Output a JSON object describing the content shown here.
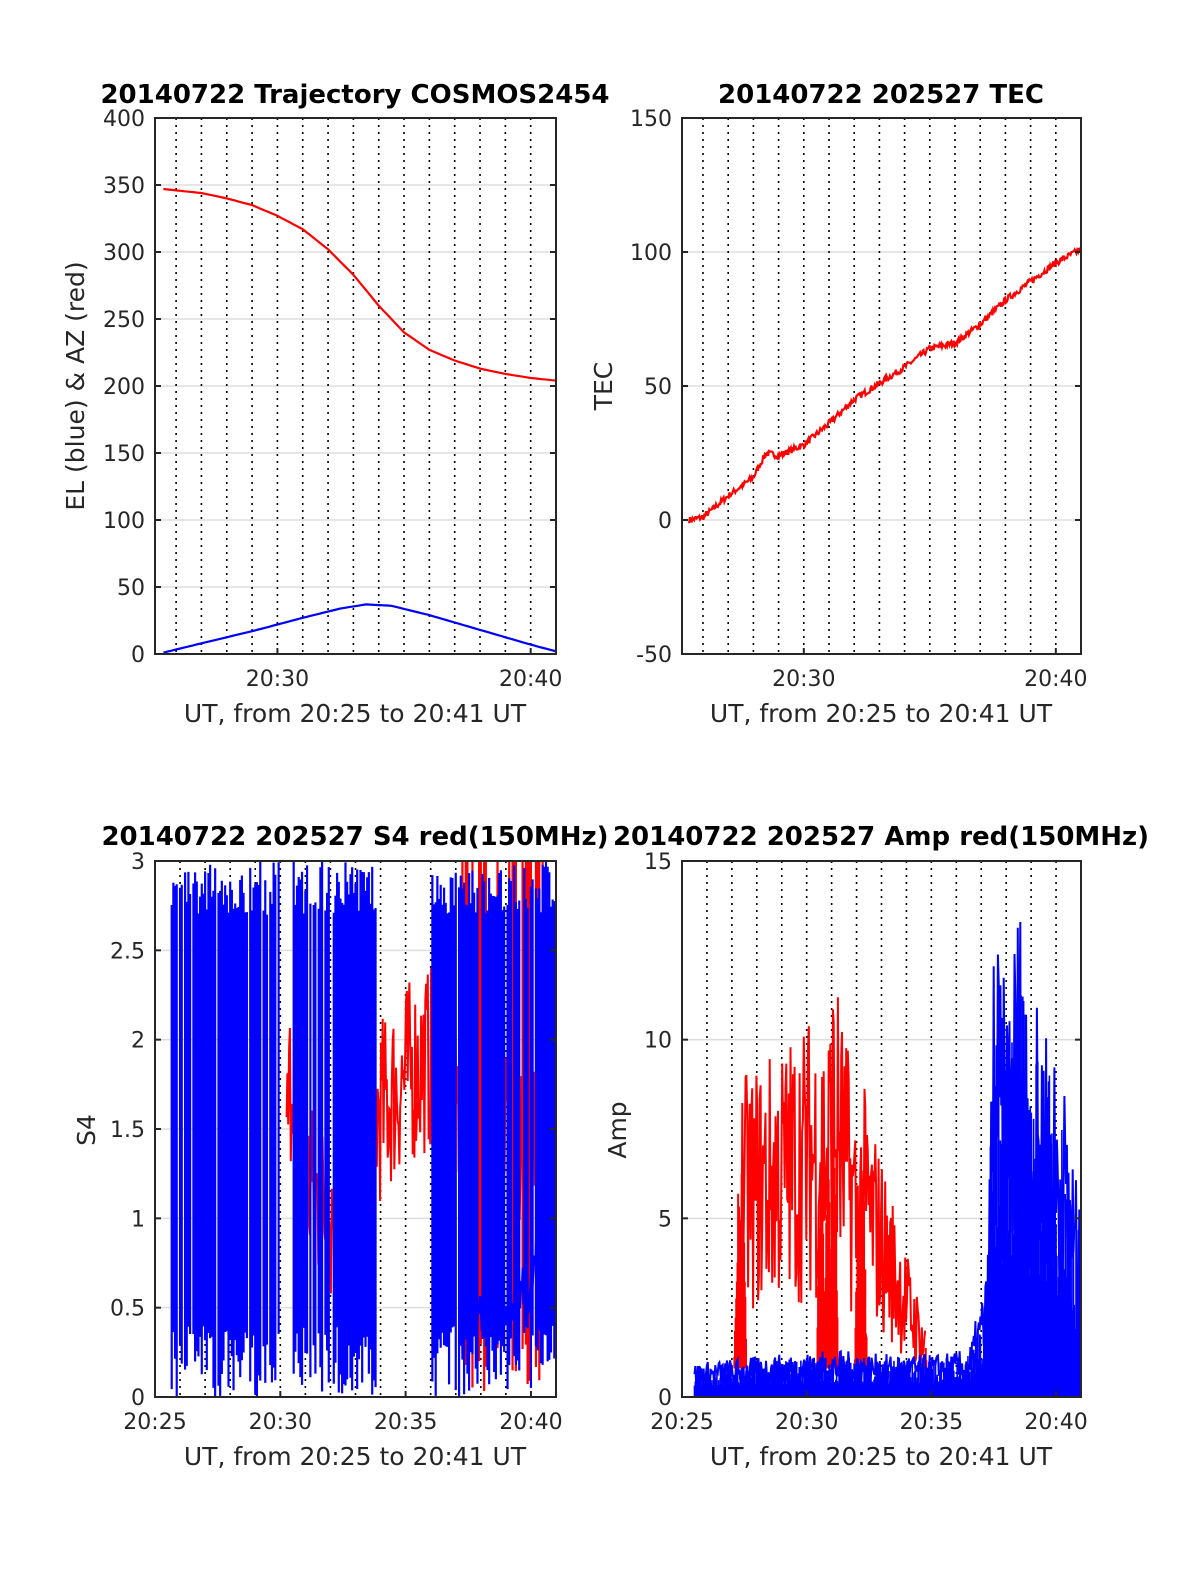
{
  "colors": {
    "el": "#0000ff",
    "az": "#ff0000",
    "s4_red": "#ff0000",
    "s4_blue": "#0000ff",
    "axis": "#262626",
    "grid": "#dddddd"
  },
  "chart_data": [
    {
      "type": "line",
      "title": "20140722 Trajectory COSMOS2454",
      "xlabel": "UT, from 20:25 to 20:41 UT",
      "ylabel": "EL (blue) & AZ (red)",
      "xlim": [
        "20:25:10",
        "20:41:00"
      ],
      "ylim": [
        0,
        400
      ],
      "yticks": [
        0,
        50,
        100,
        150,
        200,
        250,
        300,
        350,
        400
      ],
      "xticks": [
        "20:30",
        "20:40"
      ],
      "grid": "dotted vertical lines every minute; horizontal grid",
      "series": [
        {
          "name": "EL (blue)",
          "color": "#0000ff",
          "x": [
            "20:25:30",
            "20:27:00",
            "20:29:00",
            "20:31:00",
            "20:32:30",
            "20:33:30",
            "20:34:30",
            "20:36:00",
            "20:38:00",
            "20:40:00",
            "20:41:00"
          ],
          "y": [
            1,
            8,
            17,
            27,
            34,
            37,
            36,
            29,
            18,
            7,
            2
          ]
        },
        {
          "name": "AZ (red)",
          "color": "#ff0000",
          "x": [
            "20:25:30",
            "20:27:00",
            "20:28:00",
            "20:29:00",
            "20:30:00",
            "20:31:00",
            "20:32:00",
            "20:33:00",
            "20:34:00",
            "20:35:00",
            "20:36:00",
            "20:37:00",
            "20:38:00",
            "20:39:00",
            "20:40:00",
            "20:41:00"
          ],
          "y": [
            347,
            344,
            340,
            335,
            327,
            317,
            302,
            283,
            260,
            240,
            227,
            219,
            213,
            209,
            206,
            204
          ]
        }
      ]
    },
    {
      "type": "line",
      "title": "20140722 202527 TEC",
      "xlabel": "UT, from 20:25 to 20:41 UT",
      "ylabel": "TEC",
      "xlim": [
        "20:25:10",
        "20:41:00"
      ],
      "ylim": [
        -50,
        150
      ],
      "yticks": [
        -50,
        0,
        50,
        100,
        150
      ],
      "xticks": [
        "20:30",
        "20:40"
      ],
      "series": [
        {
          "name": "TEC",
          "color": "#ff0000",
          "x": [
            "20:25:27",
            "20:26:00",
            "20:27:00",
            "20:28:00",
            "20:28:30",
            "20:29:00",
            "20:29:30",
            "20:30:00",
            "20:31:00",
            "20:32:00",
            "20:33:00",
            "20:34:00",
            "20:35:00",
            "20:36:00",
            "20:37:00",
            "20:38:00",
            "20:39:00",
            "20:40:00",
            "20:41:00"
          ],
          "y": [
            0,
            1,
            9,
            16,
            25,
            24,
            26,
            28,
            36,
            45,
            51,
            57,
            64,
            66,
            73,
            82,
            89,
            96,
            101
          ]
        }
      ]
    },
    {
      "type": "line",
      "title": "20140722 202527 S4 red(150MHz)",
      "xlabel": "UT, from 20:25 to 20:41 UT",
      "ylabel": "S4",
      "xlim": [
        "20:25:00",
        "20:41:00"
      ],
      "ylim": [
        0,
        3
      ],
      "yticks": [
        0,
        0.5,
        1,
        1.5,
        2,
        2.5,
        3
      ],
      "xticks": [
        "20:25",
        "20:30",
        "20:35",
        "20:40"
      ],
      "series": [
        {
          "name": "red(150MHz)",
          "color": "#ff0000",
          "x": [
            "20:30:15",
            "20:30:30",
            "20:31:00",
            "20:32:00",
            "20:33:00",
            "20:34:00",
            "20:35:00",
            "20:36:00",
            "20:37:00",
            "20:38:00",
            "20:39:00",
            "20:40:00",
            "20:41:00"
          ],
          "y": [
            1.4,
            2.0,
            1.2,
            1.0,
            1.5,
            1.6,
            1.8,
            1.9,
            1.7,
            1.5,
            1.4,
            1.6,
            1.7
          ]
        },
        {
          "name": "blue",
          "color": "#0000ff",
          "x": [
            "20:37:30",
            "20:38:00",
            "20:38:30",
            "20:39:00",
            "20:39:30",
            "20:40:00",
            "20:40:30",
            "20:41:00"
          ],
          "y": [
            0.55,
            0.5,
            0.55,
            0.52,
            0.58,
            0.6,
            1.0,
            2.5
          ]
        }
      ]
    },
    {
      "type": "line",
      "title": "20140722 202527 Amp red(150MHz)",
      "xlabel": "UT, from 20:25 to 20:41 UT",
      "ylabel": "Amp",
      "xlim": [
        "20:25:00",
        "20:41:00"
      ],
      "ylim": [
        0,
        15
      ],
      "yticks": [
        0,
        5,
        10,
        15
      ],
      "xticks": [
        "20:25",
        "20:30",
        "20:35",
        "20:40"
      ],
      "series": [
        {
          "name": "red(150MHz)",
          "color": "#ff0000",
          "x": [
            "20:27:15",
            "20:27:25",
            "20:30:35",
            "20:30:50",
            "20:31:05",
            "20:32:05",
            "20:32:15",
            "20:34:45"
          ],
          "y": [
            6.0,
            7.5,
            9.2,
            8.8,
            10.5,
            6.5,
            7.4,
            1.8
          ]
        },
        {
          "name": "blue",
          "color": "#0000ff",
          "x": [
            "20:25:30",
            "20:27:00",
            "20:29:00",
            "20:31:00",
            "20:33:00",
            "20:35:00",
            "20:36:30",
            "20:37:15",
            "20:37:30",
            "20:38:00",
            "20:38:30",
            "20:39:00",
            "20:39:30",
            "20:40:00",
            "20:40:30",
            "20:41:00"
          ],
          "y": [
            0.8,
            0.9,
            1.0,
            1.1,
            1.0,
            1.0,
            1.1,
            3.0,
            11.2,
            9.5,
            12.1,
            9.0,
            9.3,
            8.0,
            7.0,
            4.0
          ]
        }
      ]
    }
  ]
}
